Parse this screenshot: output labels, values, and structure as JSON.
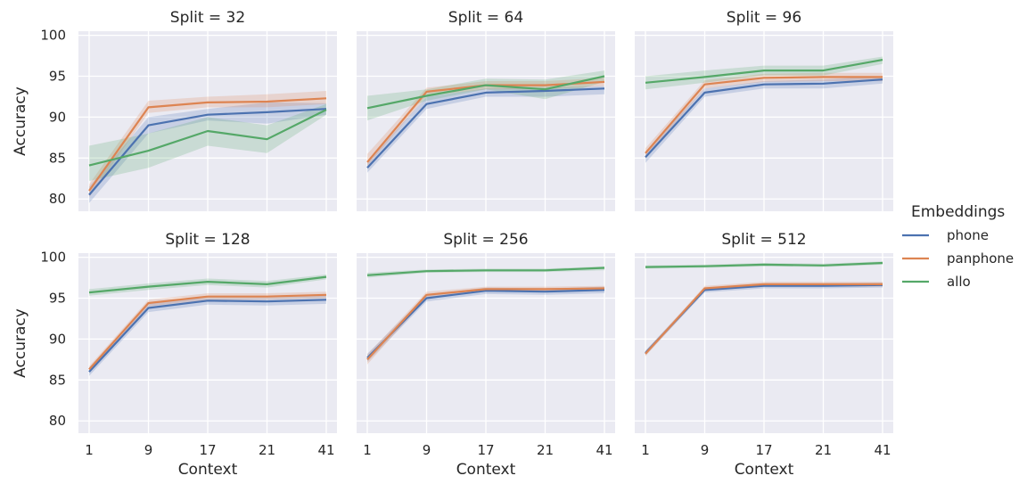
{
  "chart_data": {
    "type": "line",
    "facet_label": "Split",
    "xlabel": "Context",
    "ylabel": "Accuracy",
    "x": [
      "1",
      "9",
      "17",
      "21",
      "41"
    ],
    "ylim": [
      78.5,
      100.5
    ],
    "yticks": [
      80,
      85,
      90,
      95,
      100
    ],
    "grid": true,
    "legend": {
      "title": "Embeddings",
      "placement": "right",
      "entries": [
        "phone",
        "panphone",
        "allo"
      ]
    },
    "colors": {
      "phone": "#4c72b0",
      "panphone": "#dd8452",
      "allo": "#55a868"
    },
    "panels": [
      {
        "title": "Split = 32",
        "series": [
          {
            "name": "phone",
            "values": [
              80.5,
              89.0,
              90.3,
              90.6,
              91.0
            ],
            "lower": [
              79.5,
              88.0,
              89.6,
              89.2,
              90.3
            ],
            "upper": [
              81.5,
              90.0,
              91.0,
              91.8,
              91.7
            ]
          },
          {
            "name": "panphone",
            "values": [
              81.0,
              91.2,
              91.8,
              91.9,
              92.3
            ],
            "lower": [
              80.2,
              90.5,
              91.2,
              91.2,
              91.6
            ],
            "upper": [
              81.8,
              92.0,
              92.5,
              92.8,
              93.2
            ]
          },
          {
            "name": "allo",
            "values": [
              84.1,
              85.9,
              88.3,
              87.3,
              90.9
            ],
            "lower": [
              82.2,
              83.8,
              86.5,
              85.6,
              90.3
            ],
            "upper": [
              86.5,
              88.0,
              90.0,
              89.0,
              91.6
            ]
          }
        ]
      },
      {
        "title": "Split = 64",
        "series": [
          {
            "name": "phone",
            "values": [
              83.8,
              91.6,
              93.0,
              93.2,
              93.5
            ],
            "lower": [
              83.2,
              91.0,
              92.5,
              92.5,
              92.8
            ],
            "upper": [
              84.5,
              92.5,
              93.5,
              93.6,
              93.8
            ]
          },
          {
            "name": "panphone",
            "values": [
              84.5,
              93.1,
              93.9,
              93.9,
              94.3
            ],
            "lower": [
              84.0,
              92.6,
              93.4,
              93.4,
              93.8
            ],
            "upper": [
              85.5,
              93.6,
              94.4,
              94.4,
              94.8
            ]
          },
          {
            "name": "allo",
            "values": [
              91.1,
              92.6,
              93.9,
              93.4,
              95.0
            ],
            "lower": [
              89.6,
              92.0,
              93.4,
              92.2,
              94.3
            ],
            "upper": [
              92.6,
              93.4,
              94.7,
              94.6,
              95.7
            ]
          }
        ]
      },
      {
        "title": "Split = 96",
        "series": [
          {
            "name": "phone",
            "values": [
              85.1,
              93.0,
              94.0,
              94.1,
              94.6
            ],
            "lower": [
              84.4,
              92.5,
              93.5,
              93.5,
              94.1
            ],
            "upper": [
              85.8,
              93.5,
              94.4,
              94.6,
              95.0
            ]
          },
          {
            "name": "panphone",
            "values": [
              85.6,
              94.0,
              94.8,
              94.9,
              94.9
            ],
            "lower": [
              85.0,
              93.5,
              94.3,
              94.4,
              94.4
            ],
            "upper": [
              86.2,
              94.5,
              95.3,
              95.4,
              95.4
            ]
          },
          {
            "name": "allo",
            "values": [
              94.2,
              94.9,
              95.7,
              95.7,
              97.0
            ],
            "lower": [
              93.4,
              94.2,
              95.1,
              95.1,
              96.5
            ],
            "upper": [
              95.0,
              95.7,
              96.3,
              96.3,
              97.4
            ]
          }
        ]
      },
      {
        "title": "Split = 128",
        "series": [
          {
            "name": "phone",
            "values": [
              86.0,
              93.8,
              94.7,
              94.6,
              94.8
            ],
            "lower": [
              85.5,
              93.3,
              94.2,
              94.1,
              94.3
            ],
            "upper": [
              86.5,
              94.3,
              95.2,
              95.1,
              95.3
            ]
          },
          {
            "name": "panphone",
            "values": [
              86.3,
              94.4,
              95.2,
              95.2,
              95.4
            ],
            "lower": [
              85.9,
              94.0,
              94.8,
              94.8,
              95.0
            ],
            "upper": [
              86.7,
              94.8,
              95.6,
              95.6,
              95.8
            ]
          },
          {
            "name": "allo",
            "values": [
              95.7,
              96.4,
              97.0,
              96.7,
              97.6
            ],
            "lower": [
              95.3,
              96.0,
              96.6,
              96.3,
              97.3
            ],
            "upper": [
              96.1,
              96.8,
              97.4,
              97.1,
              97.9
            ]
          }
        ]
      },
      {
        "title": "Split = 256",
        "series": [
          {
            "name": "phone",
            "values": [
              87.7,
              95.0,
              95.9,
              95.8,
              96.0
            ],
            "lower": [
              87.2,
              94.6,
              95.5,
              95.4,
              95.6
            ],
            "upper": [
              88.2,
              95.4,
              96.3,
              96.2,
              96.4
            ]
          },
          {
            "name": "panphone",
            "values": [
              87.5,
              95.4,
              96.1,
              96.1,
              96.2
            ],
            "lower": [
              86.9,
              95.0,
              95.8,
              95.8,
              95.9
            ],
            "upper": [
              88.1,
              95.8,
              96.4,
              96.4,
              96.5
            ]
          },
          {
            "name": "allo",
            "values": [
              97.8,
              98.3,
              98.4,
              98.4,
              98.7
            ],
            "lower": [
              97.5,
              98.1,
              98.2,
              98.2,
              98.4
            ],
            "upper": [
              98.1,
              98.5,
              98.6,
              98.6,
              98.9
            ]
          }
        ]
      },
      {
        "title": "Split = 512",
        "series": [
          {
            "name": "phone",
            "values": [
              88.3,
              96.0,
              96.5,
              96.5,
              96.6
            ],
            "lower": [
              88.0,
              95.7,
              96.2,
              96.2,
              96.3
            ],
            "upper": [
              88.6,
              96.3,
              96.8,
              96.8,
              96.9
            ]
          },
          {
            "name": "panphone",
            "values": [
              88.2,
              96.2,
              96.7,
              96.7,
              96.7
            ],
            "lower": [
              87.9,
              95.9,
              96.4,
              96.4,
              96.4
            ],
            "upper": [
              88.5,
              96.5,
              97.0,
              97.0,
              97.0
            ]
          },
          {
            "name": "allo",
            "values": [
              98.8,
              98.9,
              99.1,
              99.0,
              99.3
            ],
            "lower": [
              98.6,
              98.7,
              98.9,
              98.8,
              99.1
            ],
            "upper": [
              99.0,
              99.1,
              99.3,
              99.2,
              99.5
            ]
          }
        ]
      }
    ]
  }
}
